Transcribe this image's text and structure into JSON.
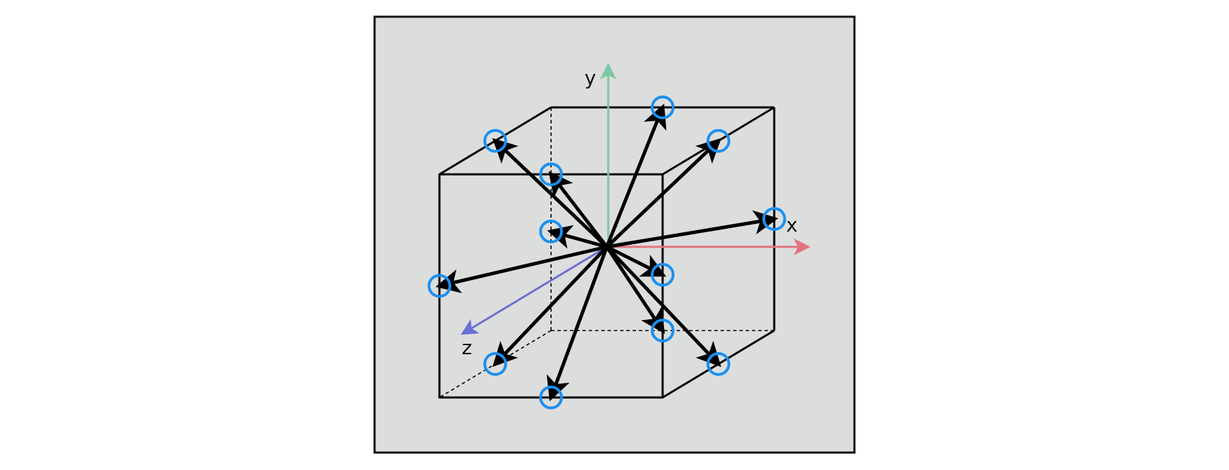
{
  "figure": {
    "panel_background": "#dcdedd",
    "edge_color": "#000000"
  },
  "axes": {
    "x": {
      "label": "x",
      "color": "#e2747f"
    },
    "y": {
      "label": "y",
      "color": "#7fc6a4"
    },
    "z": {
      "label": "z",
      "color": "#6b6fd6"
    }
  },
  "markers": {
    "color": "#1a8ff0",
    "count": 12,
    "type": "open-circle"
  },
  "vectors": {
    "count": 12,
    "color": "#000000",
    "origin": "cube-center"
  }
}
